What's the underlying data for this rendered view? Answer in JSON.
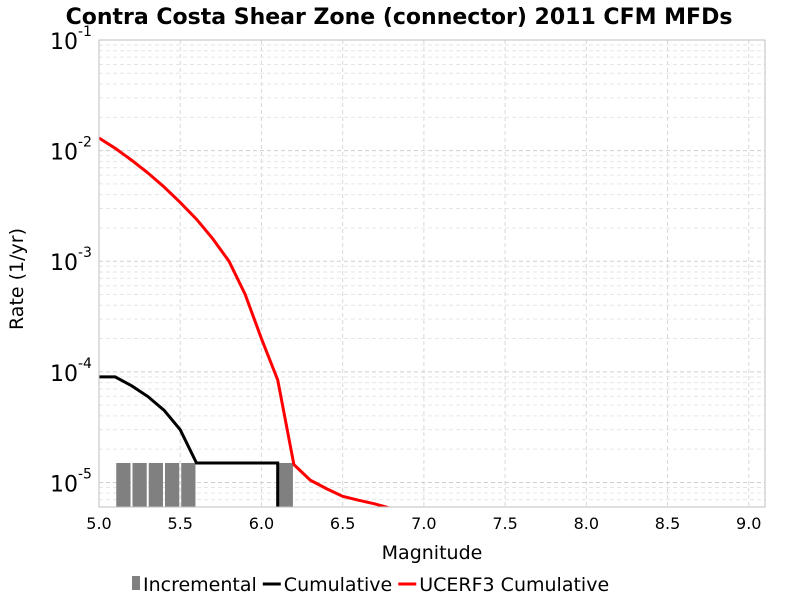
{
  "chart_data": {
    "type": "line",
    "title": "Contra Costa Shear Zone (connector) 2011 CFM MFDs",
    "xlabel": "Magnitude",
    "ylabel": "Rate (1/yr)",
    "xlim": [
      5.0,
      9.1
    ],
    "ylim": [
      6e-06,
      0.1
    ],
    "yscale": "log",
    "grid": true,
    "legend_position": "bottom",
    "x_ticks": [
      "5.0",
      "5.5",
      "6.0",
      "6.5",
      "7.0",
      "7.5",
      "8.0",
      "8.5",
      "9.0"
    ],
    "y_ticks": [
      {
        "base": "10",
        "exp": "-5",
        "value": 1e-05
      },
      {
        "base": "10",
        "exp": "-4",
        "value": 0.0001
      },
      {
        "base": "10",
        "exp": "-3",
        "value": 0.001
      },
      {
        "base": "10",
        "exp": "-2",
        "value": 0.01
      },
      {
        "base": "10",
        "exp": "-1",
        "value": 0.1
      }
    ],
    "series": [
      {
        "name": "Incremental",
        "kind": "bar",
        "color": "#808080",
        "x": [
          5.15,
          5.25,
          5.35,
          5.45,
          5.55,
          6.15
        ],
        "y": [
          1.5e-05,
          1.5e-05,
          1.5e-05,
          1.5e-05,
          1.5e-05,
          1.5e-05
        ]
      },
      {
        "name": "Cumulative",
        "kind": "line",
        "color": "#000000",
        "x": [
          5.0,
          5.1,
          5.2,
          5.3,
          5.4,
          5.5,
          5.6,
          6.1,
          6.1
        ],
        "y": [
          9e-05,
          9e-05,
          7.5e-05,
          6e-05,
          4.5e-05,
          3e-05,
          1.5e-05,
          1.5e-05,
          1e-06
        ]
      },
      {
        "name": "UCERF3 Cumulative",
        "kind": "line",
        "color": "#ff0000",
        "x": [
          5.0,
          5.1,
          5.2,
          5.3,
          5.4,
          5.5,
          5.6,
          5.7,
          5.8,
          5.9,
          6.0,
          6.1,
          6.2,
          6.3,
          6.4,
          6.5,
          6.6,
          6.7,
          6.8
        ],
        "y": [
          0.013,
          0.0105,
          0.0082,
          0.0063,
          0.0047,
          0.0034,
          0.0024,
          0.0016,
          0.001,
          0.0005,
          0.0002,
          8.45e-05,
          1.45e-05,
          1.05e-05,
          8.8e-06,
          7.5e-06,
          6.9e-06,
          6.4e-06,
          5.8e-06
        ]
      }
    ]
  }
}
